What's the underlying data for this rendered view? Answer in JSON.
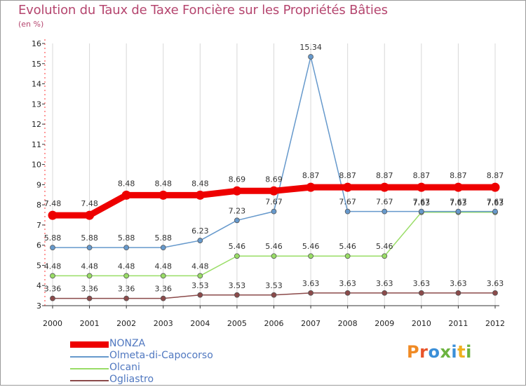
{
  "title": "Evolution du Taux de Taxe Foncière sur les Propriétés Bâties",
  "unit_label": "(en %)",
  "logo": {
    "letters": [
      "P",
      "r",
      "o",
      "x",
      "i",
      "t",
      "i"
    ],
    "colors": [
      "#f08a24",
      "#e8542a",
      "#3a8fd8",
      "#6cb33f",
      "#3a8fd8",
      "#f0b020",
      "#6cb33f"
    ]
  },
  "chart_data": {
    "type": "line",
    "x": [
      "2000",
      "2001",
      "2002",
      "2003",
      "2004",
      "2005",
      "2006",
      "2007",
      "2008",
      "2009",
      "2010",
      "2011",
      "2012"
    ],
    "ylim": [
      3,
      16
    ],
    "yticks": [
      "3",
      "4",
      "5",
      "6",
      "7",
      "8",
      "9",
      "10",
      "11",
      "12",
      "13",
      "14",
      "15",
      "16"
    ],
    "series": [
      {
        "name": "NONZA",
        "color": "#ee0000",
        "values": [
          7.48,
          7.48,
          8.48,
          8.48,
          8.48,
          8.69,
          8.69,
          8.87,
          8.87,
          8.87,
          8.87,
          8.87,
          8.87
        ],
        "labels": [
          "7.48",
          "7.48",
          "8.48",
          "8.48",
          "8.48",
          "8.69",
          "8.69",
          "8.87",
          "8.87",
          "8.87",
          "8.87",
          "8.87",
          "8.87"
        ]
      },
      {
        "name": "Olmeta-di-Capocorso",
        "color": "#6699cc",
        "values": [
          5.88,
          5.88,
          5.88,
          5.88,
          6.23,
          7.23,
          7.67,
          15.34,
          7.67,
          7.67,
          7.67,
          7.67,
          7.67
        ],
        "labels": [
          "5.88",
          "5.88",
          "5.88",
          "5.88",
          "6.23",
          "7.23",
          "7.67",
          "15.34",
          "7.67",
          "7.67",
          "7.67",
          "7.67",
          "7.67"
        ]
      },
      {
        "name": "Olcani",
        "color": "#99dd66",
        "values": [
          4.48,
          4.48,
          4.48,
          4.48,
          4.48,
          5.46,
          5.46,
          5.46,
          5.46,
          5.46,
          7.63,
          7.63,
          7.63
        ],
        "labels": [
          "4.48",
          "4.48",
          "4.48",
          "4.48",
          "4.48",
          "5.46",
          "5.46",
          "5.46",
          "5.46",
          "5.46",
          "7.63",
          "7.63",
          "7.63"
        ]
      },
      {
        "name": "Ogliastro",
        "color": "#8b4a4a",
        "values": [
          3.36,
          3.36,
          3.36,
          3.36,
          3.53,
          3.53,
          3.53,
          3.63,
          3.63,
          3.63,
          3.63,
          3.63,
          3.63
        ],
        "labels": [
          "3.36",
          "3.36",
          "3.36",
          "3.36",
          "3.53",
          "3.53",
          "3.53",
          "3.63",
          "3.63",
          "3.63",
          "3.63",
          "3.63",
          "3.63"
        ]
      }
    ]
  }
}
